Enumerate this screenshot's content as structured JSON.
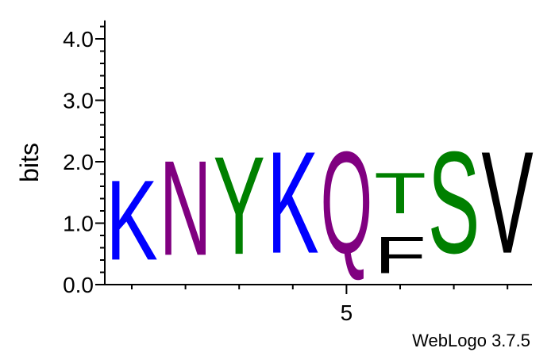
{
  "chart_data": {
    "type": "sequence-logo",
    "ylabel": "bits",
    "ylim": [
      0,
      4.3
    ],
    "y_ticks": [
      {
        "value": 0,
        "label": "0.0"
      },
      {
        "value": 1,
        "label": "1.0"
      },
      {
        "value": 2,
        "label": "2.0"
      },
      {
        "value": 3,
        "label": "3.0"
      },
      {
        "value": 4,
        "label": "4.0"
      }
    ],
    "x_labeled_ticks": [
      {
        "position": 5,
        "label": "5"
      }
    ],
    "positions": [
      {
        "position": 1,
        "stack": [
          {
            "letter": "K",
            "bits": 2.08,
            "color": "#0000ff"
          }
        ]
      },
      {
        "position": 2,
        "stack": [
          {
            "letter": "N",
            "bits": 2.47,
            "color": "#800080"
          }
        ]
      },
      {
        "position": 3,
        "stack": [
          {
            "letter": "Y",
            "bits": 2.55,
            "color": "#008000"
          }
        ]
      },
      {
        "position": 4,
        "stack": [
          {
            "letter": "K",
            "bits": 2.65,
            "color": "#0000ff"
          }
        ]
      },
      {
        "position": 5,
        "stack": [
          {
            "letter": "Q",
            "bits": 2.65,
            "color": "#800080"
          }
        ]
      },
      {
        "position": 6,
        "stack": [
          {
            "letter": "F",
            "bits": 0.95,
            "color": "#000000"
          },
          {
            "letter": "T",
            "bits": 1.06,
            "color": "#008000"
          }
        ]
      },
      {
        "position": 7,
        "stack": [
          {
            "letter": "S",
            "bits": 2.65,
            "color": "#008000"
          }
        ]
      },
      {
        "position": 8,
        "stack": [
          {
            "letter": "V",
            "bits": 2.65,
            "color": "#000000"
          }
        ]
      }
    ]
  },
  "credit": "WebLogo 3.7.5"
}
